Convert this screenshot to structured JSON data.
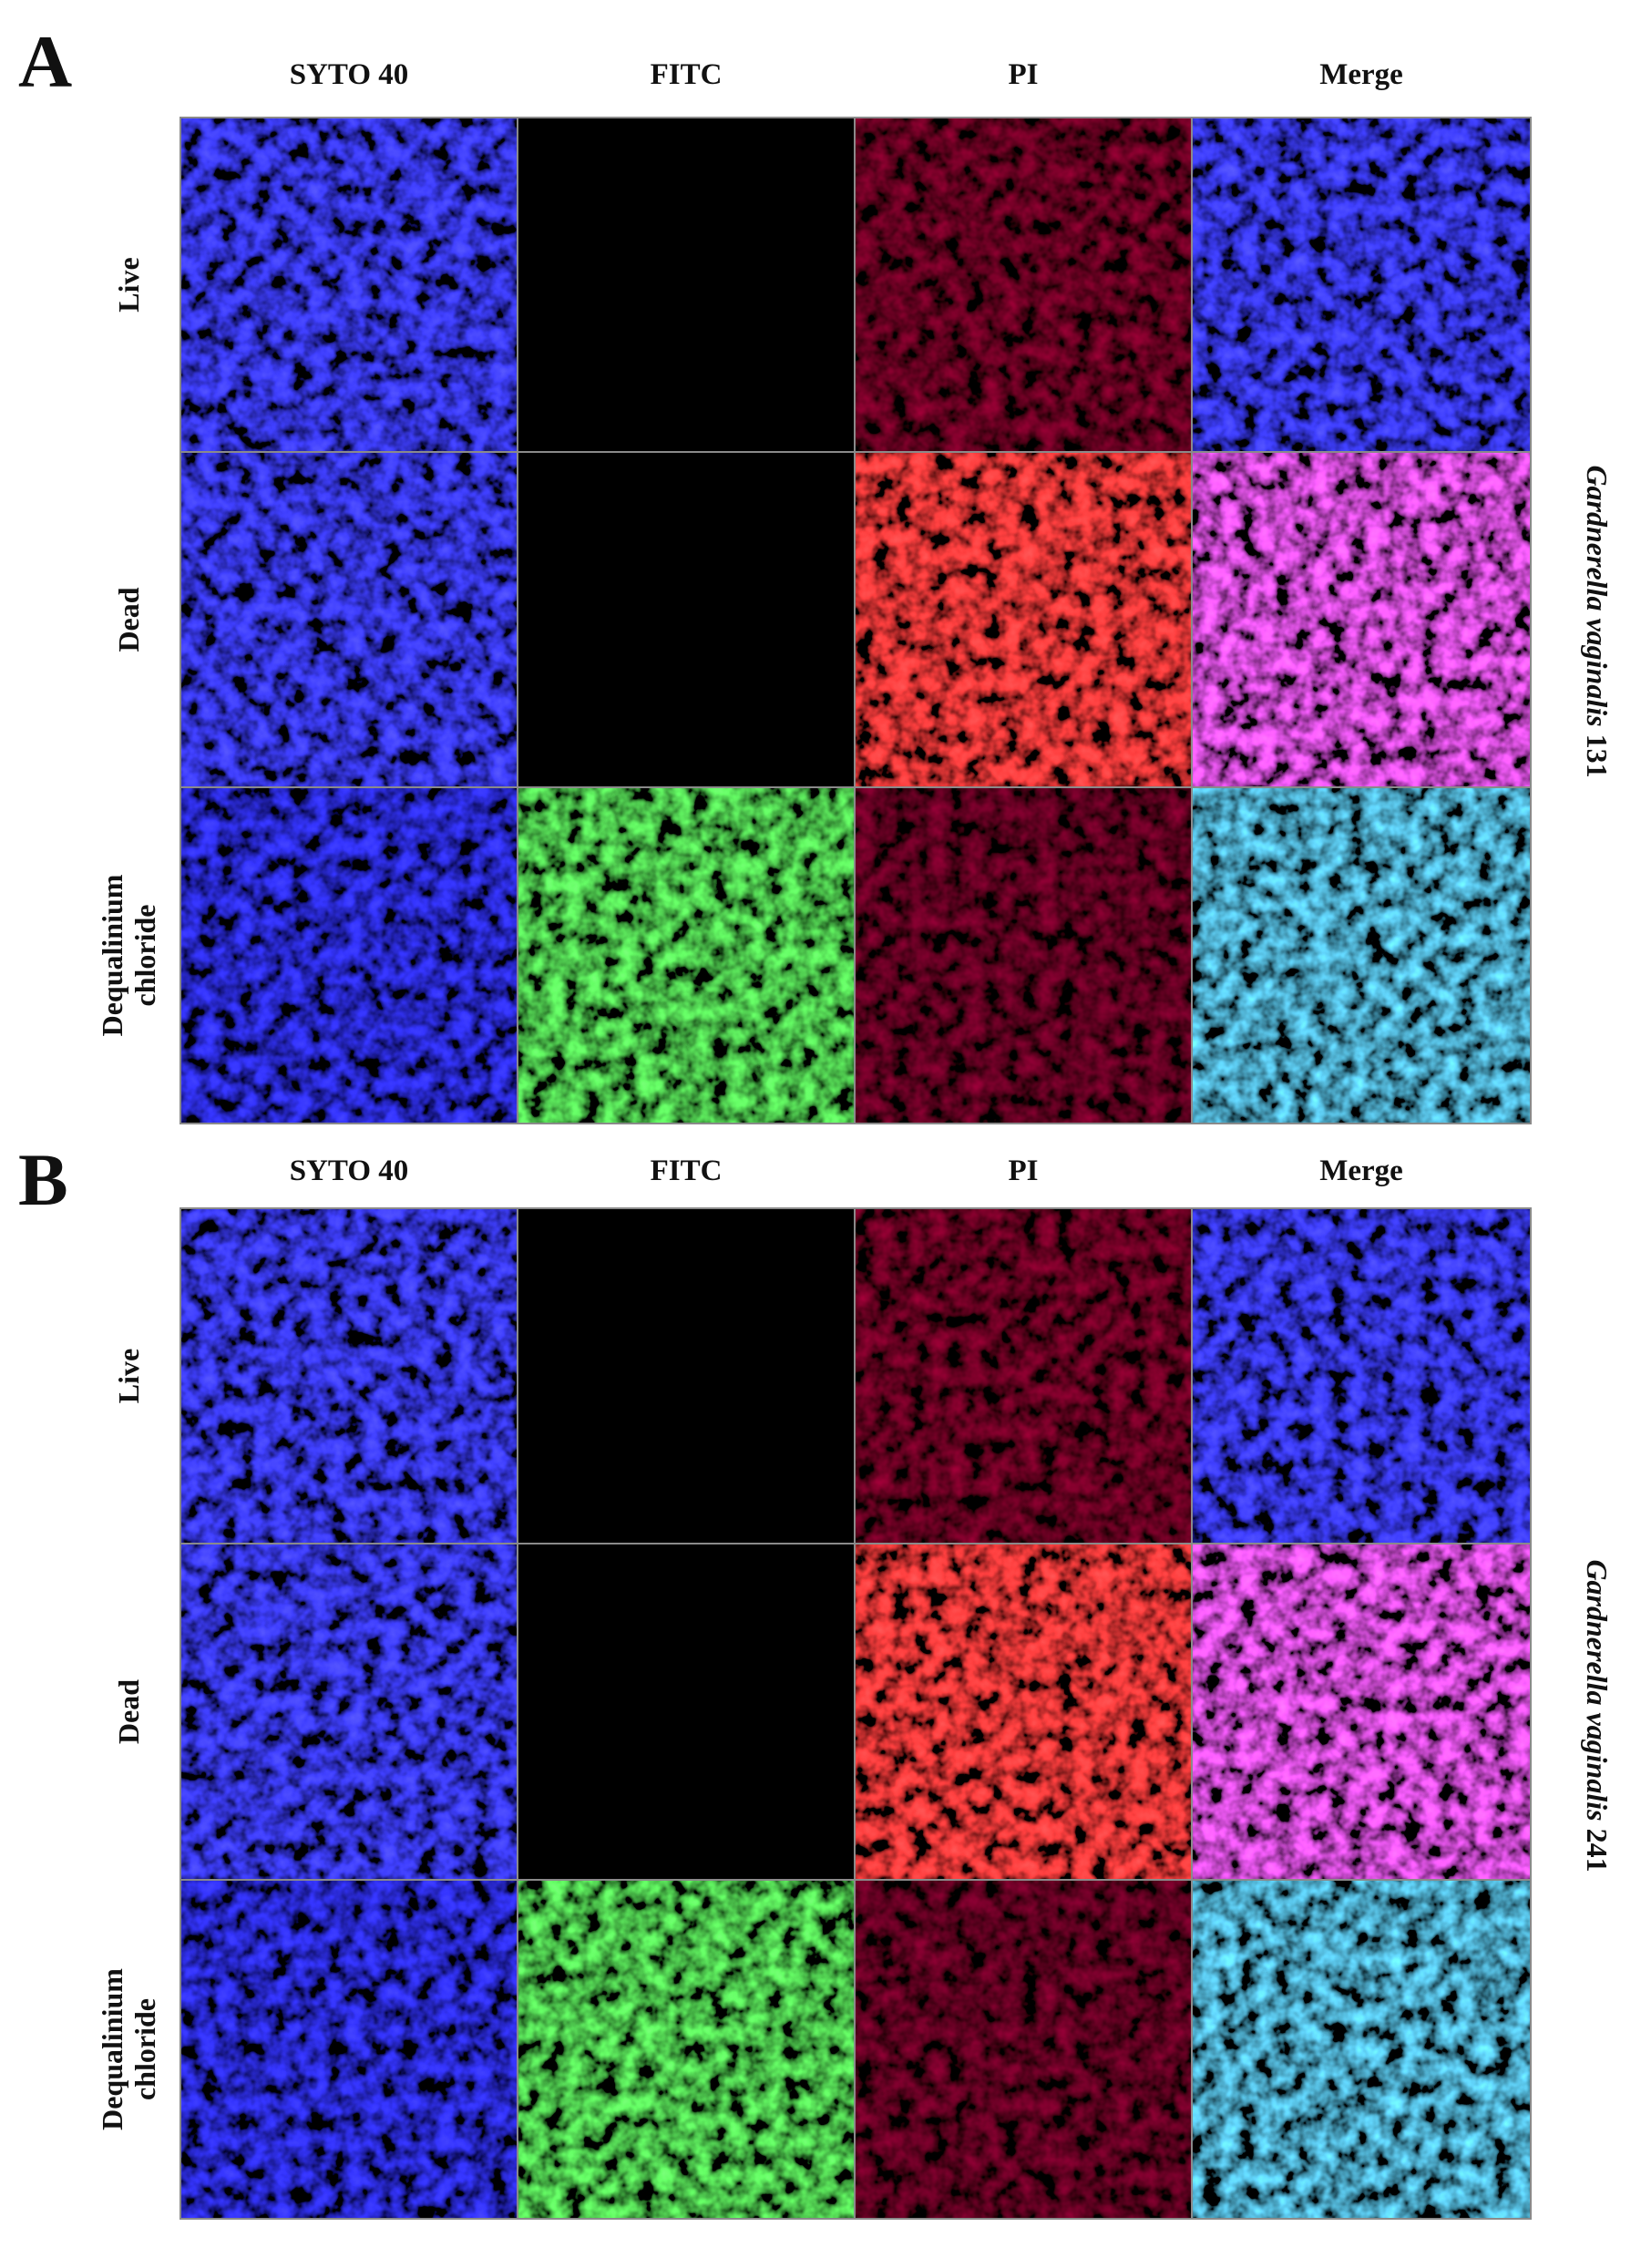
{
  "panels": [
    {
      "label": "A",
      "columns": [
        "SYTO 40",
        "FITC",
        "PI",
        "Merge"
      ],
      "rows": [
        [
          "Live"
        ],
        [
          "Dead"
        ],
        [
          "Dequalinium",
          "chloride"
        ]
      ],
      "species": "Gardnerella vaginalis",
      "strain": "131"
    },
    {
      "label": "B",
      "columns": [
        "SYTO 40",
        "FITC",
        "PI",
        "Merge"
      ],
      "rows": [
        [
          "Live"
        ],
        [
          "Dead"
        ],
        [
          "Dequalinium",
          "chloride"
        ]
      ],
      "species": "Gardnerella vaginalis",
      "strain": "241"
    }
  ]
}
